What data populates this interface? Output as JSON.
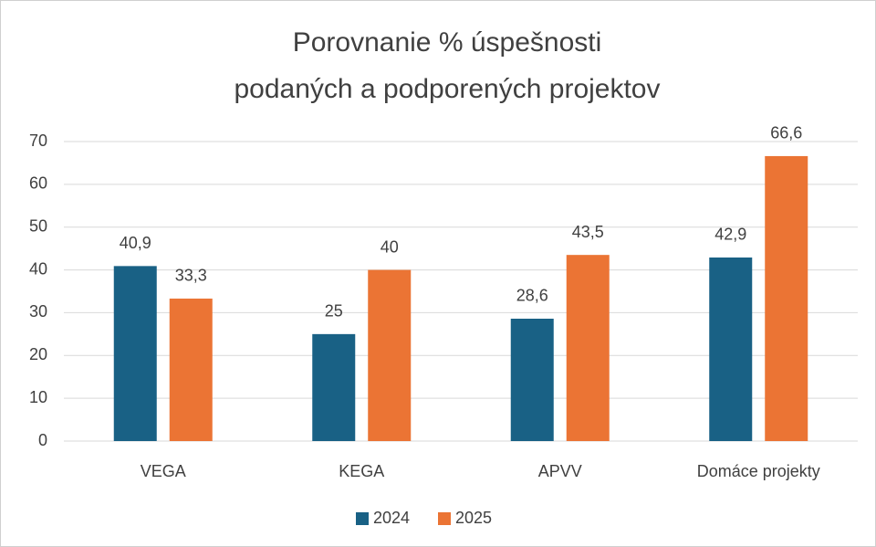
{
  "chart_data": {
    "type": "bar",
    "title": [
      "Porovnanie % úspešnosti",
      "podaných a podporených projektov"
    ],
    "categories": [
      "VEGA",
      "KEGA",
      "APVV",
      "Domáce projekty"
    ],
    "series": [
      {
        "name": "2024",
        "color": "#196185",
        "values": [
          40.9,
          25,
          28.6,
          42.9
        ],
        "value_labels": [
          "40,9",
          "25",
          "28,6",
          "42,9"
        ]
      },
      {
        "name": "2025",
        "color": "#eb7434",
        "values": [
          33.3,
          40,
          43.5,
          66.6
        ],
        "value_labels": [
          "33,3",
          "40",
          "43,5",
          "66,6"
        ]
      }
    ],
    "ylim": [
      0,
      70
    ],
    "yticks": [
      0,
      10,
      20,
      30,
      40,
      50,
      60,
      70
    ],
    "grid": true,
    "legend": "bottom"
  }
}
